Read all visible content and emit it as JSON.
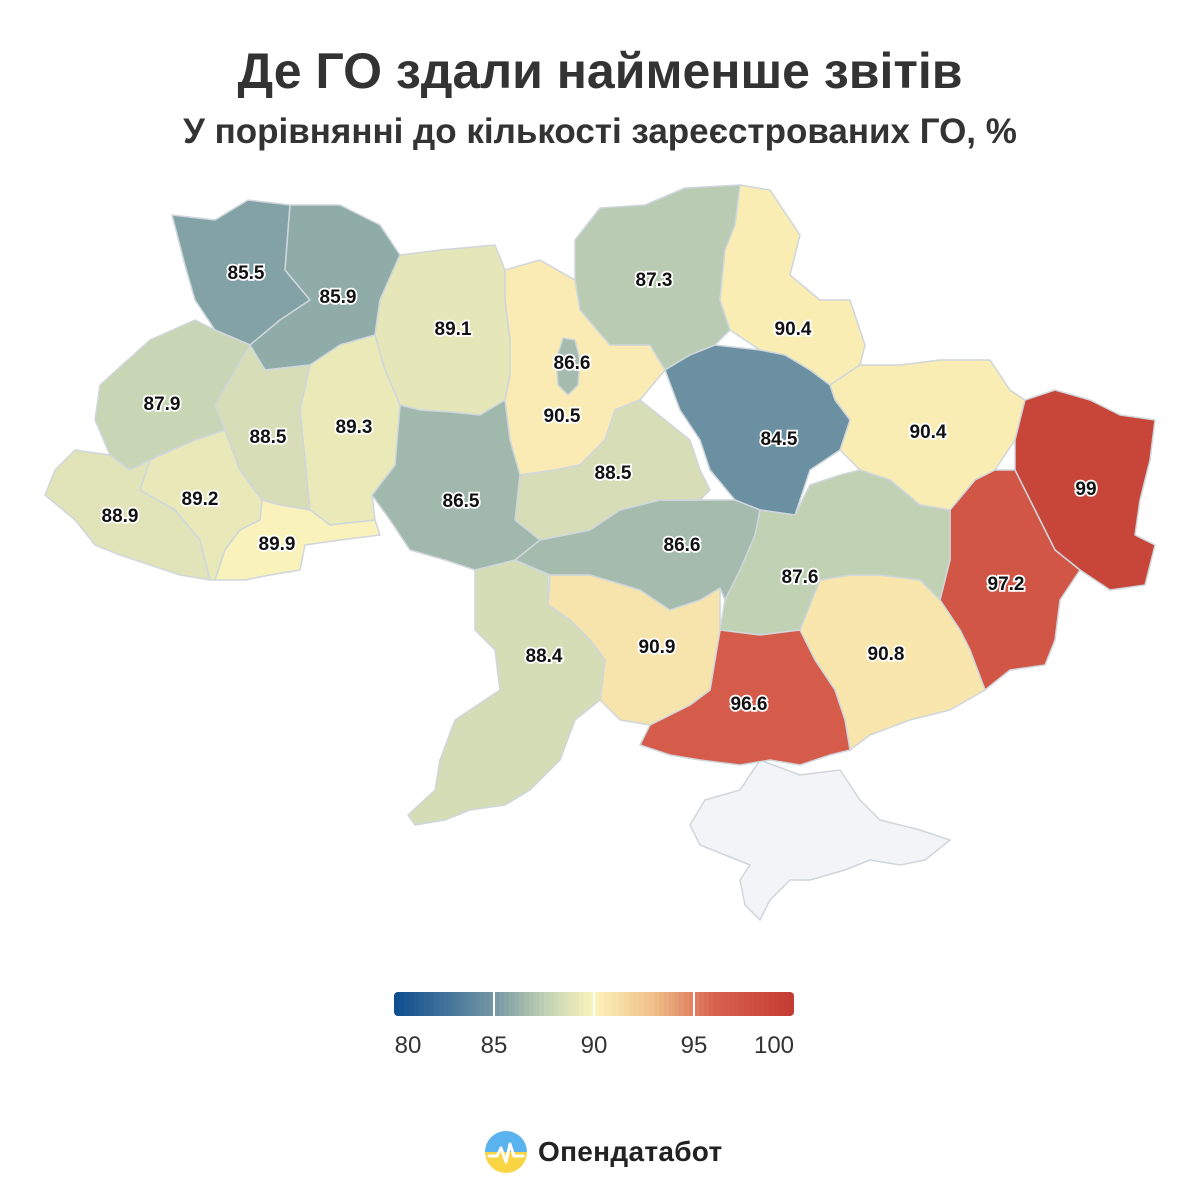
{
  "title": "Де ГО здали найменше звітів",
  "subtitle": "У порівнянні до кількості зареєстрованих ГО, %",
  "colors": {
    "scale_stops": [
      "#0d4c8f",
      "#7497a3",
      "#bfd0b4",
      "#fbf4bb",
      "#efbf88",
      "#d8624f",
      "#c23b31"
    ],
    "no_data": "#f3f4f7",
    "border": "#cfd6dc"
  },
  "regions": [
    {
      "name": "Волинська",
      "value": 85.5,
      "label": "85.5"
    },
    {
      "name": "Рівненська",
      "value": 85.9,
      "label": "85.9"
    },
    {
      "name": "Житомирська",
      "value": 89.1,
      "label": "89.1"
    },
    {
      "name": "Київська",
      "value": 90.5,
      "label": "90.5"
    },
    {
      "name": "м. Київ",
      "value": 86.6,
      "label": "86.6"
    },
    {
      "name": "Чернігівська",
      "value": 87.3,
      "label": "87.3"
    },
    {
      "name": "Сумська",
      "value": 90.4,
      "label": "90.4"
    },
    {
      "name": "Харківська",
      "value": 90.4,
      "label": "90.4"
    },
    {
      "name": "Полтавська",
      "value": 84.5,
      "label": "84.5"
    },
    {
      "name": "Луганська",
      "value": 99,
      "label": "99"
    },
    {
      "name": "Донецька",
      "value": 97.2,
      "label": "97.2"
    },
    {
      "name": "Запорізька",
      "value": 90.8,
      "label": "90.8"
    },
    {
      "name": "Дніпропетровська",
      "value": 87.6,
      "label": "87.6"
    },
    {
      "name": "Херсонська",
      "value": 96.6,
      "label": "96.6"
    },
    {
      "name": "Миколаївська",
      "value": 90.9,
      "label": "90.9"
    },
    {
      "name": "Одеська",
      "value": 88.4,
      "label": "88.4"
    },
    {
      "name": "Кіровоградська",
      "value": 86.6,
      "label": "86.6"
    },
    {
      "name": "Черкаська",
      "value": 88.5,
      "label": "88.5"
    },
    {
      "name": "Вінницька",
      "value": 86.5,
      "label": "86.5"
    },
    {
      "name": "Хмельницька",
      "value": 89.3,
      "label": "89.3"
    },
    {
      "name": "Тернопільська",
      "value": 88.5,
      "label": "88.5"
    },
    {
      "name": "Львівська",
      "value": 87.9,
      "label": "87.9"
    },
    {
      "name": "Закарпатська",
      "value": 88.9,
      "label": "88.9"
    },
    {
      "name": "Івано-Франківська",
      "value": 89.2,
      "label": "89.2"
    },
    {
      "name": "Чернівецька",
      "value": 89.9,
      "label": "89.9"
    }
  ],
  "legend": {
    "min": 80,
    "max": 100,
    "tick_labels": [
      "80",
      "85",
      "90",
      "95",
      "100"
    ]
  },
  "brand": {
    "name": "Опендатабот",
    "icon": "opendatabot-logo-icon"
  }
}
